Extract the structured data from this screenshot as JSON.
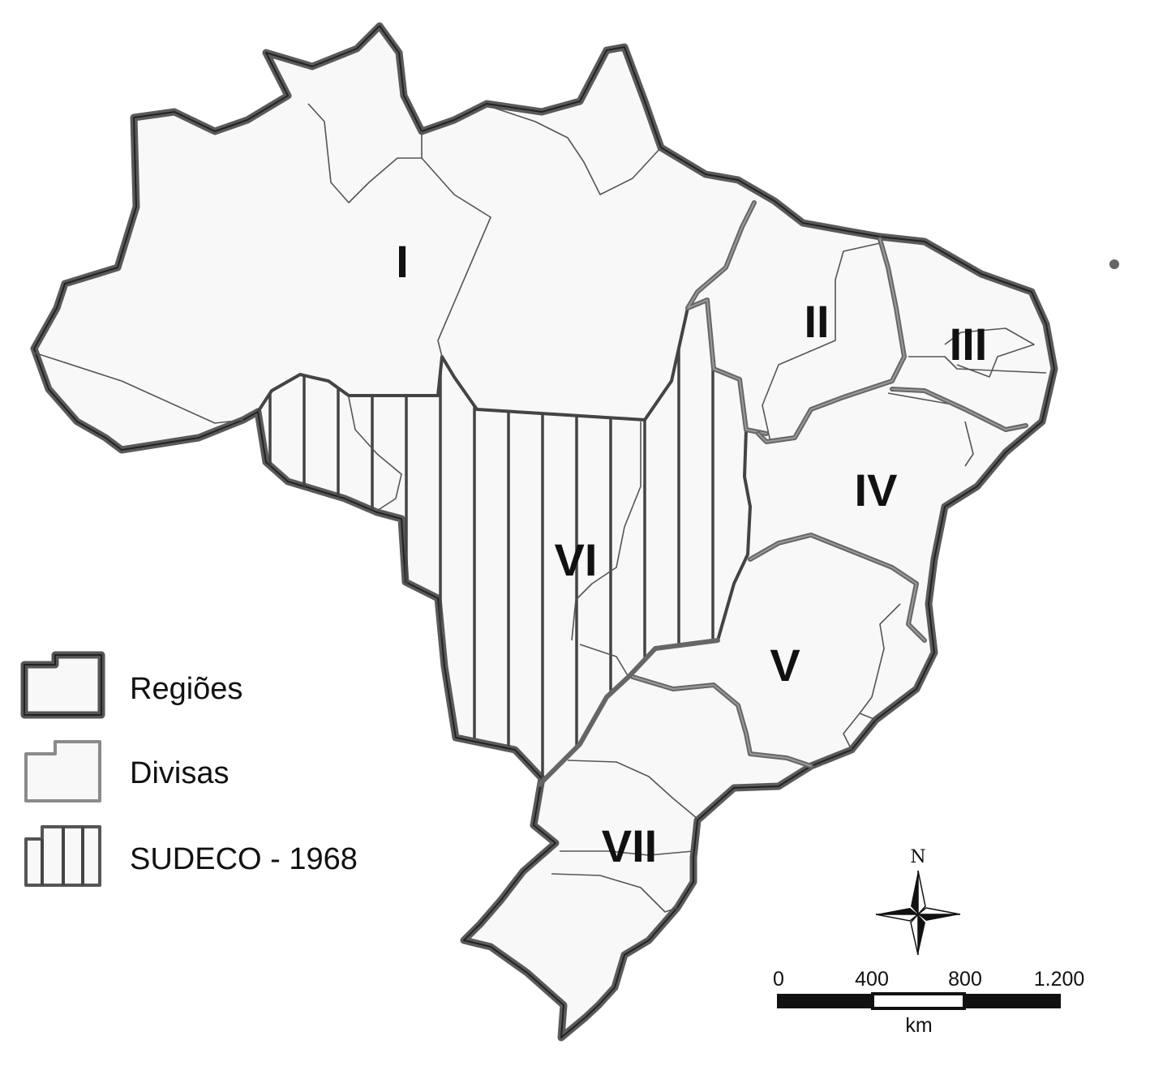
{
  "regions": [
    {
      "label": "I"
    },
    {
      "label": "II"
    },
    {
      "label": "III"
    },
    {
      "label": "IV"
    },
    {
      "label": "V"
    },
    {
      "label": "VI"
    },
    {
      "label": "VII"
    }
  ],
  "legend": {
    "items": [
      {
        "label": "Regiões",
        "symbol": "regions-outline"
      },
      {
        "label": "Divisas",
        "symbol": "state-borders"
      },
      {
        "label": "SUDECO - 1968",
        "symbol": "vertical-hatch"
      }
    ]
  },
  "north_arrow": {
    "label": "N",
    "icon": "compass-rose-icon"
  },
  "scale_bar": {
    "ticks": [
      "0",
      "400",
      "800",
      "1.200"
    ],
    "unit": "km"
  },
  "colors": {
    "land": "#f8f8f8",
    "region_border": "#5a5a5a",
    "state_border": "#555555",
    "hatch": "#444444"
  }
}
